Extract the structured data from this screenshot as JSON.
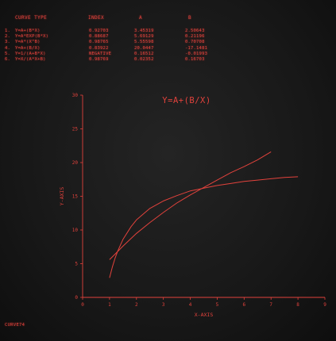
{
  "header": {
    "curve_type": "CURVE TYPE",
    "index": "INDEX",
    "a": "A",
    "b": "B"
  },
  "curves": [
    {
      "num": "1.",
      "type": "Y=A+(B*X)",
      "index": "0.92703",
      "a": "3.45319",
      "b": "2.50643"
    },
    {
      "num": "2.",
      "type": "Y=A*EXP(B*X)",
      "index": "0.88687",
      "a": "5.69129",
      "b": "0.21196"
    },
    {
      "num": "3.",
      "type": "Y=A*(X^B)",
      "index": "0.98765",
      "a": "5.55598",
      "b": "0.70708"
    },
    {
      "num": "4.",
      "type": "Y=A+(B/X)",
      "index": "0.83922",
      "a": "20.0447",
      "b": "-17.1481"
    },
    {
      "num": "5.",
      "type": "Y=1/(A+B*X)",
      "index": "NEGATIVE",
      "a": "0.16512",
      "b": "-0.01993"
    },
    {
      "num": "6.",
      "type": "Y=X/(A*X+B)",
      "index": "0.98769",
      "a": "0.02352",
      "b": "0.16703"
    }
  ],
  "chart_data": {
    "type": "line",
    "title": "Y=A+(B/X)",
    "xlabel": "X-AXIS",
    "ylabel": "Y-AXIS",
    "xlim": [
      0,
      9
    ],
    "ylim": [
      0,
      30
    ],
    "xticks": [
      "0",
      "1",
      "2",
      "3",
      "4",
      "5",
      "6",
      "7",
      "8",
      "9"
    ],
    "yticks": [
      "0",
      "5",
      "10",
      "15",
      "20",
      "25",
      "30"
    ],
    "grid": false,
    "series": [
      {
        "x": [
          1.0,
          1.1,
          1.2,
          1.3,
          1.5,
          1.8,
          2.0,
          2.5,
          3.0,
          3.5,
          4.0,
          4.5,
          5.0,
          5.5,
          6.0,
          6.5,
          7.0,
          7.5,
          8.0
        ],
        "y": [
          2.9,
          4.45,
          5.75,
          6.85,
          8.6,
          10.5,
          11.5,
          13.2,
          14.3,
          15.1,
          15.8,
          16.2,
          16.6,
          16.9,
          17.2,
          17.4,
          17.6,
          17.8,
          17.9
        ]
      },
      {
        "x": [
          1.0,
          1.2,
          1.5,
          2.0,
          2.5,
          3.0,
          3.5,
          4.0,
          4.5,
          5.0,
          5.5,
          6.0,
          6.5,
          7.0
        ],
        "y": [
          5.6,
          6.4,
          7.6,
          9.5,
          11.1,
          12.6,
          14.0,
          15.2,
          16.3,
          17.4,
          18.5,
          19.4,
          20.4,
          21.6
        ]
      }
    ],
    "color": "#e2423c"
  },
  "footer": {
    "label": "CURVE74"
  }
}
